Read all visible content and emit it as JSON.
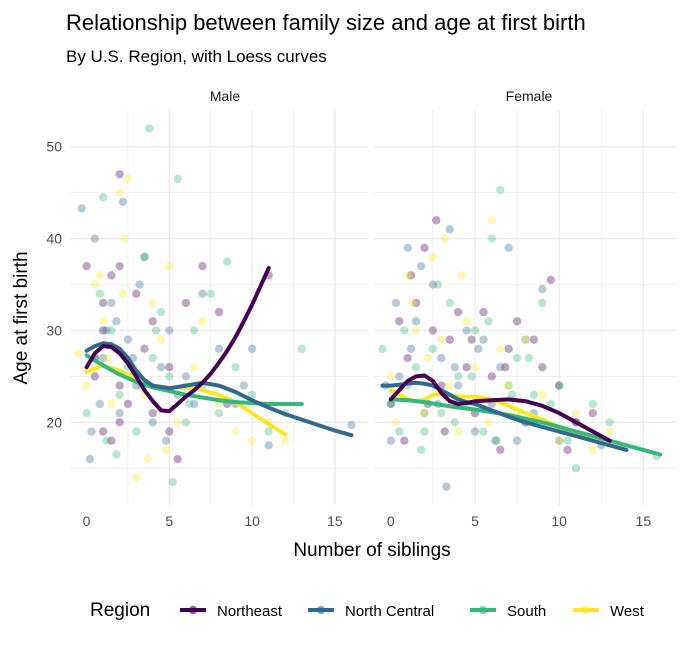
{
  "chart_data": {
    "type": "scatter",
    "title": "Relationship between family size and age at first birth",
    "subtitle": "By U.S. Region, with Loess curves",
    "xlabel": "Number of siblings",
    "ylabel": "Age at first birth",
    "xlim": [
      -1,
      17
    ],
    "ylim": [
      11,
      54
    ],
    "x_ticks": [
      0,
      5,
      10,
      15
    ],
    "y_ticks": [
      20,
      30,
      40,
      50
    ],
    "grid": true,
    "legend": {
      "title": "Region",
      "position": "bottom",
      "entries": [
        "Northeast",
        "North Central",
        "South",
        "West"
      ]
    },
    "colors": {
      "Northeast": "#440154",
      "North Central": "#31688E",
      "South": "#35B779",
      "West": "#FDE725"
    },
    "panels": [
      {
        "label": "Male",
        "loess": [
          {
            "name": "Northeast",
            "x": [
              0,
              0.5,
              1,
              1.5,
              2,
              2.5,
              3,
              3.5,
              4,
              4.5,
              5,
              5.5,
              6,
              6.5,
              7,
              7.5,
              8,
              8.5,
              9,
              9.5,
              10,
              10.5,
              11
            ],
            "y": [
              26,
              27.5,
              28.3,
              28.2,
              27.5,
              26.4,
              25,
              23.5,
              22.3,
              21.3,
              21.2,
              22,
              22.8,
              23.5,
              24.3,
              25.3,
              26.5,
              27.8,
              29.3,
              31,
              32.8,
              34.8,
              36.8
            ]
          },
          {
            "name": "North Central",
            "x": [
              0,
              0.5,
              1,
              1.5,
              2,
              2.5,
              3,
              3.5,
              4,
              5,
              6,
              7,
              8,
              9,
              10,
              11,
              12,
              13,
              14,
              15,
              16
            ],
            "y": [
              27.8,
              28.3,
              28.6,
              28.5,
              28,
              27,
              25.6,
              24.6,
              24,
              23.7,
              24,
              24.3,
              24,
              23.3,
              22.4,
              21.6,
              20.9,
              20.3,
              19.7,
              19.1,
              18.6
            ]
          },
          {
            "name": "South",
            "x": [
              0,
              1,
              2,
              3,
              4,
              5,
              6,
              7,
              8,
              9,
              10,
              11,
              12,
              13
            ],
            "y": [
              27.3,
              26.2,
              25.2,
              24.4,
              23.8,
              23.4,
              23,
              22.7,
              22.4,
              22.2,
              22.1,
              22,
              22,
              22
            ]
          },
          {
            "name": "West",
            "x": [
              0,
              1,
              2,
              3,
              4,
              5,
              6,
              7,
              8,
              9,
              10,
              11,
              12
            ],
            "y": [
              25.5,
              26.2,
              25.6,
              24.8,
              24,
              23.8,
              23.8,
              23.5,
              23,
              22.2,
              21,
              19.8,
              18.7
            ]
          }
        ],
        "points": [
          {
            "name": "Northeast",
            "x": [
              0,
              0.5,
              1,
              1.5,
              2,
              2.5,
              3,
              1,
              2,
              3.5,
              4,
              5,
              6,
              7,
              8,
              1.5,
              0.5,
              2,
              3,
              4,
              5,
              5.5,
              11,
              8.5,
              2,
              1
            ],
            "y": [
              37,
              25,
              30,
              36,
              47,
              22,
              34,
              19,
              24,
              28,
              21,
              19,
              33,
              37,
              32,
              18,
              27,
              20,
              25,
              31,
              26,
              16,
              36,
              22,
              37,
              33
            ]
          },
          {
            "name": "North Central",
            "x": [
              -0.3,
              0.2,
              0.5,
              1,
              1.5,
              2,
              2.2,
              2.5,
              3,
              3.5,
              4,
              4.5,
              5,
              5.5,
              6,
              7,
              8,
              9,
              10,
              11,
              16,
              0.8,
              1.8,
              3.2,
              4.8,
              6.5,
              2.8,
              0.3,
              1.2,
              9.5
            ],
            "y": [
              43.3,
              16,
              40,
              27,
              33,
              21,
              44,
              29,
              24,
              38,
              20,
              26,
              30,
              23,
              25,
              34,
              28,
              22,
              28,
              17.5,
              19.7,
              22,
              31,
              35,
              18,
              22,
              27,
              19,
              30,
              24
            ]
          },
          {
            "name": "South",
            "x": [
              0,
              0.5,
              1,
              1.5,
              2,
              2.5,
              3,
              3.5,
              3.8,
              4,
              4.5,
              5,
              5.2,
              5.5,
              6,
              6.5,
              7,
              7.5,
              8,
              8.5,
              9,
              10,
              11,
              12,
              13,
              0.8,
              1.2,
              2.8,
              4.2,
              6.2,
              1.8,
              3.3
            ],
            "y": [
              21,
              27,
              44.5,
              30,
              23,
              26,
              19,
              38,
              52,
              27,
              32,
              25,
              13.5,
              46.5,
              20,
              30,
              24,
              34,
              21,
              37.5,
              26,
              23,
              19,
              21,
              28,
              34,
              18,
              25,
              30,
              22,
              16.5,
              24
            ]
          },
          {
            "name": "West",
            "x": [
              -0.5,
              0,
              0.5,
              1,
              1.5,
              2,
              2.3,
              2.5,
              2.8,
              3,
              3.5,
              4,
              4.5,
              5,
              5.5,
              6,
              7,
              8,
              9,
              10,
              11,
              12,
              1.3,
              3.7,
              0.8,
              2.2,
              6.5,
              4.8
            ],
            "y": [
              27.5,
              24,
              35,
              31,
              22,
              45,
              40,
              46.5,
              26,
              14,
              23,
              33,
              29,
              37,
              20,
              24,
              31,
              22,
              19,
              18,
              20,
              18,
              27,
              16,
              36,
              34,
              26,
              17
            ]
          }
        ]
      },
      {
        "label": "Female",
        "loess": [
          {
            "name": "Northeast",
            "x": [
              0,
              0.5,
              1,
              1.5,
              2,
              2.5,
              3,
              3.5,
              4,
              4.5,
              5,
              6,
              7,
              8,
              9,
              10,
              11,
              12,
              13
            ],
            "y": [
              22.5,
              23.5,
              24.5,
              25,
              25.1,
              24.5,
              23.2,
              22.3,
              22,
              22.1,
              22.3,
              22.4,
              22.5,
              22.3,
              21.8,
              21,
              20,
              19,
              18
            ]
          },
          {
            "name": "North Central",
            "x": [
              -0.5,
              0,
              0.5,
              1,
              1.5,
              2,
              2.5,
              3,
              3.5,
              4,
              4.5,
              5,
              6,
              7,
              8,
              9,
              10,
              11,
              12,
              13,
              14
            ],
            "y": [
              24,
              24,
              24.1,
              24.2,
              24.3,
              24.2,
              24,
              23.5,
              23,
              22.5,
              22.2,
              22,
              21.3,
              20.6,
              20,
              19.5,
              19,
              18.5,
              18,
              17.5,
              17
            ]
          },
          {
            "name": "South",
            "x": [
              0,
              1,
              2,
              3,
              4,
              5,
              6,
              7,
              8,
              9,
              10,
              11,
              12,
              13,
              14,
              15,
              16
            ],
            "y": [
              22.5,
              22.4,
              22.2,
              21.9,
              21.6,
              21.4,
              21.1,
              20.8,
              20.4,
              20,
              19.5,
              19,
              18.5,
              18,
              17.5,
              17,
              16.5
            ]
          },
          {
            "name": "West",
            "x": [
              0,
              0.5,
              1,
              1.5,
              2,
              2.5,
              3,
              4,
              5,
              6,
              7,
              8,
              9,
              10,
              11,
              12,
              13
            ],
            "y": [
              23.5,
              23,
              22.5,
              22.3,
              22.5,
              23,
              23.1,
              22.8,
              22.8,
              22.5,
              21.8,
              21,
              20.3,
              19.5,
              18.7,
              18,
              17.5
            ]
          }
        ],
        "points": [
          {
            "name": "Northeast",
            "x": [
              0,
              0.5,
              1,
              1.5,
              2,
              2.5,
              2.7,
              3,
              3.5,
              4,
              4.5,
              5,
              5.5,
              6,
              6.5,
              7,
              7.5,
              8,
              8.5,
              9,
              9.5,
              10,
              10.5,
              11,
              12,
              1.2,
              3.2,
              4.8,
              2.2,
              0.8,
              6.8
            ],
            "y": [
              22,
              31,
              27,
              33,
              39,
              30,
              42,
              24,
              29,
              32,
              26,
              21,
              32,
              25,
              17,
              28,
              31,
              20,
              29,
              26,
              35.5,
              24,
              17,
              20,
              21,
              36,
              19,
              29,
              22,
              18,
              26
            ]
          },
          {
            "name": "North Central",
            "x": [
              -0.3,
              0,
              0.5,
              1,
              1.2,
              1.5,
              2,
              2.5,
              3,
              3.5,
              4,
              4.5,
              5,
              5.5,
              6,
              6.5,
              7,
              7.5,
              8,
              8.5,
              9,
              10,
              11,
              12.5,
              0.3,
              1.8,
              2.8,
              3.8,
              5.2,
              6.2,
              3.3
            ],
            "y": [
              24,
              18,
              25,
              39,
              28,
              31,
              21,
              35,
              27,
              41,
              24,
              30,
              19,
              29,
              22,
              26,
              39,
              18,
              29,
              21,
              34.5,
              18,
              20,
              17.5,
              33,
              37,
              22,
              26,
              28,
              18,
              13
            ]
          },
          {
            "name": "South",
            "x": [
              -0.5,
              0,
              0.5,
              1,
              1.5,
              2,
              2.5,
              3,
              3.5,
              4,
              4.5,
              5,
              5.5,
              6,
              6.5,
              7,
              7.5,
              8,
              8.5,
              9,
              9.5,
              10,
              10.5,
              11,
              12,
              13,
              15.8,
              0.8,
              1.8,
              2.8,
              3.8,
              4.8,
              5.8,
              6.3,
              7.2,
              8.2
            ],
            "y": [
              28,
              22,
              19,
              24,
              26,
              19,
              28,
              21,
              33,
              25,
              22,
              30,
              19,
              40,
              45.3,
              24,
              27,
              20,
              23,
              33,
              22,
              24,
              18,
              15,
              22,
              20,
              16.3,
              30,
              17,
              35,
              20,
              25,
              31,
              18,
              23,
              27
            ]
          },
          {
            "name": "West",
            "x": [
              0,
              0.5,
              1,
              1.5,
              2,
              2.5,
              3,
              3.2,
              3.5,
              4,
              4.5,
              5,
              5.5,
              6,
              6.5,
              7,
              7.5,
              8,
              8.5,
              9,
              10,
              11,
              12,
              13,
              1.3,
              2.2,
              4.2,
              0.3,
              5.8
            ],
            "y": [
              25,
              23,
              36,
              30,
              21,
              38,
              29,
              40,
              24,
              19,
              31,
              26,
              22,
              42,
              28,
              24,
              21,
              29,
              20,
              23,
              18,
              21,
              17,
              19,
              33,
              27,
              36,
              20,
              20
            ]
          }
        ]
      }
    ]
  }
}
